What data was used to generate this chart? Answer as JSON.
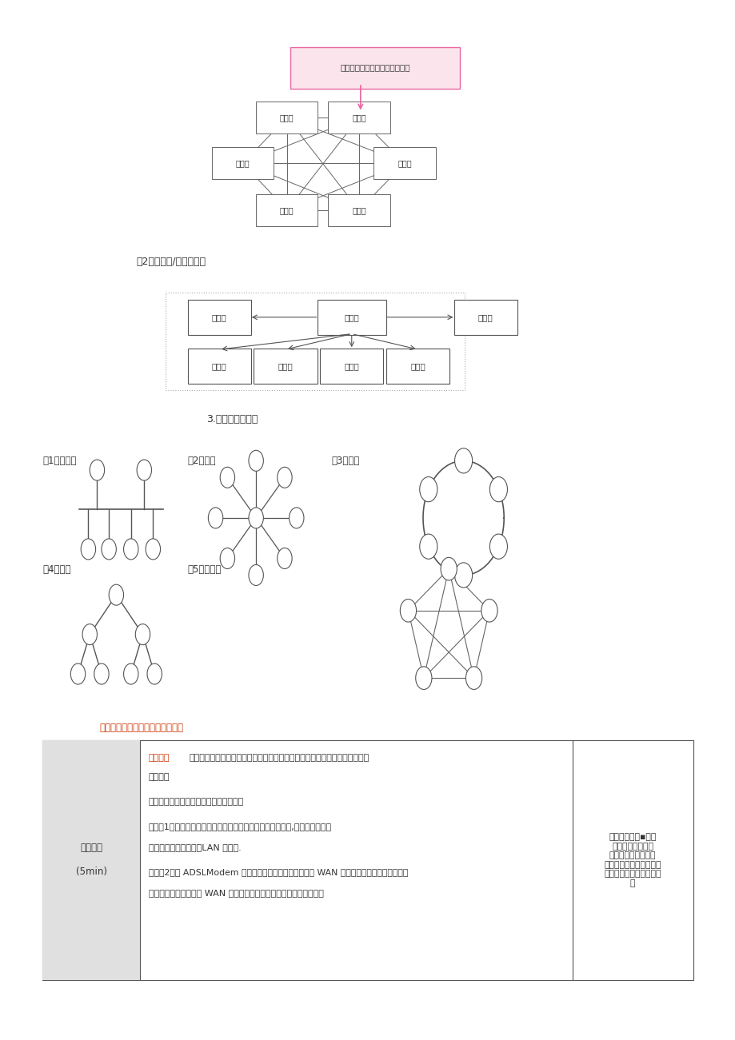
{
  "bg_color": "#ffffff",
  "page_width": 9.2,
  "page_height": 13.01,
  "section1": {
    "tooltip_text": "实线为物理连接，虚线为逻辑连",
    "tooltip_color": "#e868a2",
    "tooltip_bg": "#fce4ec"
  },
  "label2": "（2）客户机/服务器模式",
  "section3_title": "3.按拓扑结构分类",
  "topo_labels": {
    "bus": "（1）总线型",
    "star": "（2）星型",
    "ring": "（3）环型",
    "tree": "（4）树型",
    "mesh2": "（5）网状型"
  },
  "student_text": "【学生】聆听、思考、理解、记录",
  "table": {
    "col1_text": "演示讲解\n\n(5min)",
    "col3_text": "通过一边演示▪他讲\n解组建局域网的硬\n件设备并对其进行连\n接的方式，让学生更加直\n观的了解组建局域网的过\n程"
  }
}
